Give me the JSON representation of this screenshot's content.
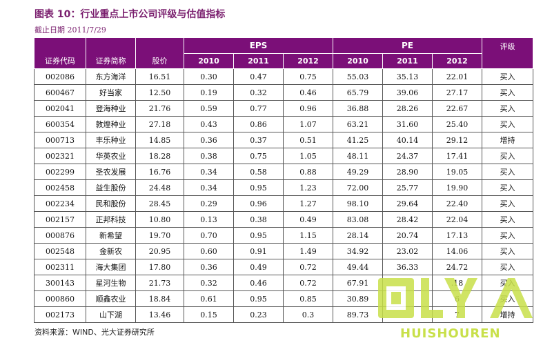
{
  "title": "图表 10：行业重点上市公司评级与估值指标",
  "subtitle": "截止日期 2011/7/29",
  "header": {
    "code": "证券代码",
    "name": "证券简称",
    "price": "股价",
    "eps": "EPS",
    "pe": "PE",
    "rating": "评级",
    "years": [
      "2010",
      "2011",
      "2012"
    ]
  },
  "rows": [
    {
      "code": "002086",
      "name": "东方海洋",
      "price": "16.51",
      "eps": [
        "0.30",
        "0.47",
        "0.75"
      ],
      "pe": [
        "55.03",
        "35.13",
        "22.01"
      ],
      "rating": "买入"
    },
    {
      "code": "600467",
      "name": "好当家",
      "price": "12.50",
      "eps": [
        "0.19",
        "0.32",
        "0.46"
      ],
      "pe": [
        "65.79",
        "39.06",
        "27.17"
      ],
      "rating": "买入"
    },
    {
      "code": "002041",
      "name": "登海种业",
      "price": "21.76",
      "eps": [
        "0.59",
        "0.77",
        "0.96"
      ],
      "pe": [
        "36.88",
        "28.26",
        "22.67"
      ],
      "rating": "买入"
    },
    {
      "code": "600354",
      "name": "敦煌种业",
      "price": "27.18",
      "eps": [
        "0.43",
        "0.86",
        "1.07"
      ],
      "pe": [
        "63.21",
        "31.60",
        "25.40"
      ],
      "rating": "买入"
    },
    {
      "code": "000713",
      "name": "丰乐种业",
      "price": "14.85",
      "eps": [
        "0.36",
        "0.37",
        "0.51"
      ],
      "pe": [
        "41.25",
        "40.14",
        "29.12"
      ],
      "rating": "增持"
    },
    {
      "code": "002321",
      "name": "华英农业",
      "price": "18.28",
      "eps": [
        "0.38",
        "0.75",
        "1.05"
      ],
      "pe": [
        "48.11",
        "24.37",
        "17.41"
      ],
      "rating": "买入"
    },
    {
      "code": "002299",
      "name": "圣农发展",
      "price": "16.76",
      "eps": [
        "0.34",
        "0.58",
        "0.88"
      ],
      "pe": [
        "49.29",
        "28.90",
        "19.05"
      ],
      "rating": "买入"
    },
    {
      "code": "002458",
      "name": "益生股份",
      "price": "24.48",
      "eps": [
        "0.34",
        "0.95",
        "1.23"
      ],
      "pe": [
        "72.00",
        "25.77",
        "19.90"
      ],
      "rating": "买入"
    },
    {
      "code": "002234",
      "name": "民和股份",
      "price": "28.45",
      "eps": [
        "0.29",
        "0.96",
        "1.27"
      ],
      "pe": [
        "98.10",
        "29.64",
        "22.40"
      ],
      "rating": "买入"
    },
    {
      "code": "002157",
      "name": "正邦科技",
      "price": "10.80",
      "eps": [
        "0.13",
        "0.38",
        "0.49"
      ],
      "pe": [
        "83.08",
        "28.42",
        "22.04"
      ],
      "rating": "买入"
    },
    {
      "code": "000876",
      "name": "新希望",
      "price": "19.70",
      "eps": [
        "0.70",
        "0.95",
        "1.15"
      ],
      "pe": [
        "28.14",
        "20.74",
        "17.13"
      ],
      "rating": "买入"
    },
    {
      "code": "002548",
      "name": "金新农",
      "price": "20.95",
      "eps": [
        "0.60",
        "0.91",
        "1.49"
      ],
      "pe": [
        "34.92",
        "23.02",
        "14.06"
      ],
      "rating": "买入"
    },
    {
      "code": "002311",
      "name": "海大集团",
      "price": "17.80",
      "eps": [
        "0.36",
        "0.49",
        "0.72"
      ],
      "pe": [
        "49.44",
        "36.33",
        "24.72"
      ],
      "rating": "买入"
    },
    {
      "code": "300143",
      "name": "星河生物",
      "price": "21.73",
      "eps": [
        "0.32",
        "0.46",
        "0.72"
      ],
      "pe": [
        "67.91",
        "",
        ".18"
      ],
      "rating": "买入"
    },
    {
      "code": "000860",
      "name": "顺鑫农业",
      "price": "18.84",
      "eps": [
        "0.61",
        "0.95",
        "0.85"
      ],
      "pe": [
        "30.89",
        "",
        "6"
      ],
      "rating": "买入"
    },
    {
      "code": "002173",
      "name": "山下湖",
      "price": "13.46",
      "eps": [
        "0.15",
        "0.23",
        "0.3"
      ],
      "pe": [
        "89.73",
        "",
        "7"
      ],
      "rating": "增持"
    }
  ],
  "footer": "资料来源：WIND、光大证券研究所",
  "watermark": {
    "text": "HUISHOUREN",
    "icon": "recycle-logo-icon",
    "color": "#c8e04a"
  },
  "colors": {
    "header_bg": "#7b0f78",
    "title": "#7a1f6e"
  }
}
